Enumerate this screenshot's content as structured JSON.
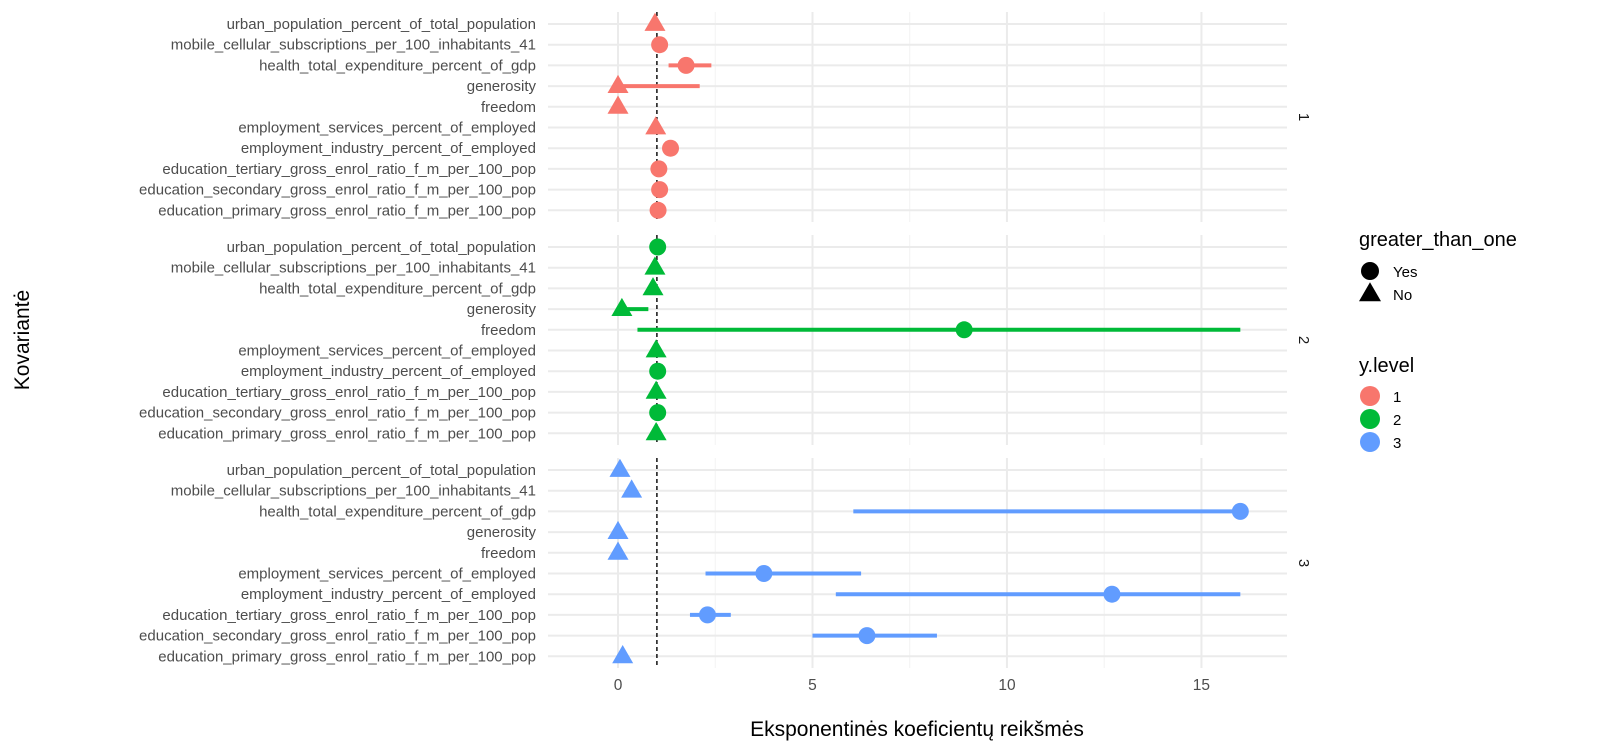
{
  "chart_data": {
    "type": "dot-range",
    "xlabel": "Eksponentinės koeficientų reikšmės",
    "ylabel": "Kovariantė",
    "xlim": [
      -1.8,
      17.2
    ],
    "xticks": [
      0,
      5,
      10,
      15
    ],
    "reference_line_x": 1,
    "grid": true,
    "categories": [
      "urban_population_percent_of_total_population",
      "mobile_cellular_subscriptions_per_100_inhabitants_41",
      "health_total_expenditure_percent_of_gdp",
      "generosity",
      "freedom",
      "employment_services_percent_of_employed",
      "employment_industry_percent_of_employed",
      "education_tertiary_gross_enrol_ratio_f_m_per_100_pop",
      "education_secondary_gross_enrol_ratio_f_m_per_100_pop",
      "education_primary_gross_enrol_ratio_f_m_per_100_pop"
    ],
    "legends": {
      "shape": {
        "title": "greater_than_one",
        "items": [
          "Yes",
          "No"
        ]
      },
      "color": {
        "title": "y.level",
        "items": [
          "1",
          "2",
          "3"
        ]
      },
      "placement": "right"
    },
    "colors": {
      "1": "#F8766D",
      "2": "#00BA38",
      "3": "#619CFF"
    },
    "panels": [
      {
        "label": "1",
        "points": [
          {
            "est": 0.95,
            "lo": null,
            "hi": null,
            "gt1": "No"
          },
          {
            "est": 1.07,
            "lo": null,
            "hi": null,
            "gt1": "Yes"
          },
          {
            "est": 1.75,
            "lo": 1.3,
            "hi": 2.4,
            "gt1": "Yes"
          },
          {
            "est": 0.0,
            "lo": 0.0,
            "hi": 2.1,
            "gt1": "No"
          },
          {
            "est": 0.0,
            "lo": null,
            "hi": null,
            "gt1": "No"
          },
          {
            "est": 0.97,
            "lo": null,
            "hi": null,
            "gt1": "No"
          },
          {
            "est": 1.35,
            "lo": null,
            "hi": null,
            "gt1": "Yes"
          },
          {
            "est": 1.05,
            "lo": null,
            "hi": null,
            "gt1": "Yes"
          },
          {
            "est": 1.07,
            "lo": null,
            "hi": null,
            "gt1": "Yes"
          },
          {
            "est": 1.03,
            "lo": null,
            "hi": null,
            "gt1": "Yes"
          }
        ]
      },
      {
        "label": "2",
        "points": [
          {
            "est": 1.02,
            "lo": null,
            "hi": null,
            "gt1": "Yes"
          },
          {
            "est": 0.95,
            "lo": null,
            "hi": null,
            "gt1": "No"
          },
          {
            "est": 0.9,
            "lo": null,
            "hi": null,
            "gt1": "No"
          },
          {
            "est": 0.1,
            "lo": 0.1,
            "hi": 0.78,
            "gt1": "No"
          },
          {
            "est": 8.9,
            "lo": 0.5,
            "hi": 16.0,
            "gt1": "Yes"
          },
          {
            "est": 0.98,
            "lo": null,
            "hi": null,
            "gt1": "No"
          },
          {
            "est": 1.02,
            "lo": null,
            "hi": null,
            "gt1": "Yes"
          },
          {
            "est": 0.98,
            "lo": null,
            "hi": null,
            "gt1": "No"
          },
          {
            "est": 1.02,
            "lo": null,
            "hi": null,
            "gt1": "Yes"
          },
          {
            "est": 0.98,
            "lo": null,
            "hi": null,
            "gt1": "No"
          }
        ]
      },
      {
        "label": "3",
        "points": [
          {
            "est": 0.05,
            "lo": null,
            "hi": null,
            "gt1": "No"
          },
          {
            "est": 0.35,
            "lo": null,
            "hi": null,
            "gt1": "No"
          },
          {
            "est": 16.0,
            "lo": 6.05,
            "hi": 16.0,
            "gt1": "Yes"
          },
          {
            "est": 0.0,
            "lo": null,
            "hi": null,
            "gt1": "No"
          },
          {
            "est": 0.0,
            "lo": null,
            "hi": null,
            "gt1": "No"
          },
          {
            "est": 3.75,
            "lo": 2.25,
            "hi": 6.25,
            "gt1": "Yes"
          },
          {
            "est": 12.7,
            "lo": 5.6,
            "hi": 16.0,
            "gt1": "Yes"
          },
          {
            "est": 2.3,
            "lo": 1.85,
            "hi": 2.9,
            "gt1": "Yes"
          },
          {
            "est": 6.4,
            "lo": 5.0,
            "hi": 8.2,
            "gt1": "Yes"
          },
          {
            "est": 0.12,
            "lo": null,
            "hi": null,
            "gt1": "No"
          }
        ]
      }
    ]
  }
}
